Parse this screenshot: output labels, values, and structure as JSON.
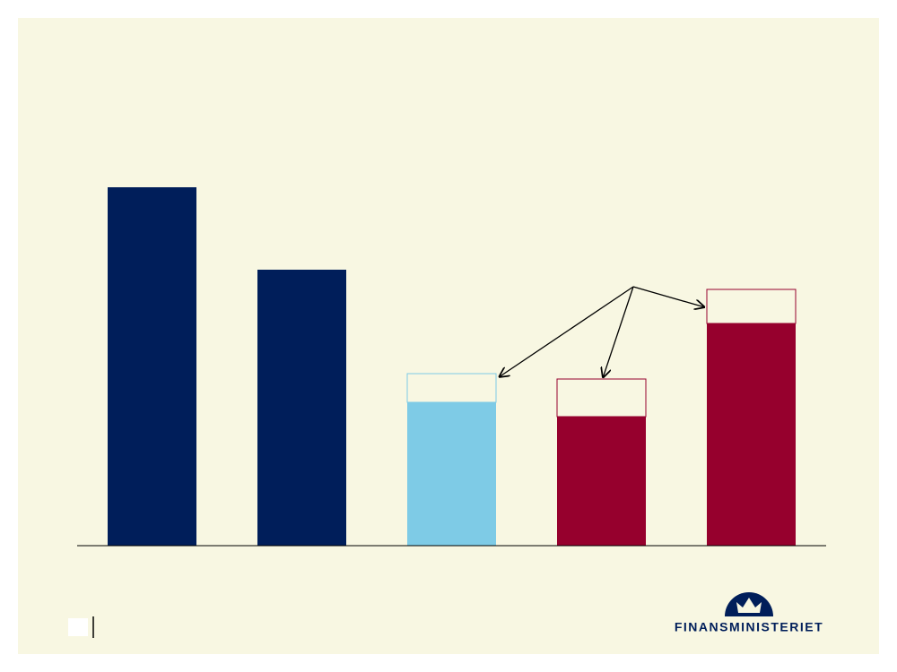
{
  "chart_data": {
    "type": "bar",
    "categories": [
      null,
      null,
      null,
      null,
      null
    ],
    "series": [
      {
        "values": [
          100,
          77,
          40,
          36,
          62
        ],
        "colors": [
          "#001e5a",
          "#001e5a",
          "#7ecbe6",
          "#96002d",
          "#96002d"
        ],
        "style": "solid"
      },
      {
        "values": [
          null,
          null,
          8,
          10.5,
          9.5
        ],
        "colors": [
          null,
          null,
          "#7ecbe6",
          "#96002d",
          "#96002d"
        ],
        "style": "outline"
      }
    ],
    "ylim": [
      0,
      100
    ],
    "logo_text": "FINANSMINISTERIET"
  }
}
